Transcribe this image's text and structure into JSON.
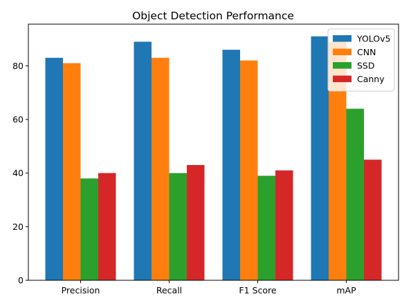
{
  "chart_data": {
    "type": "bar",
    "title": "Object Detection Performance",
    "xlabel": "",
    "ylabel": "",
    "categories": [
      "Precision",
      "Recall",
      "F1 Score",
      "mAP"
    ],
    "series": [
      {
        "name": "YOLOv5",
        "color": "#1f77b4",
        "values": [
          83,
          89,
          86,
          91
        ]
      },
      {
        "name": "CNN",
        "color": "#ff7f0e",
        "values": [
          81,
          83,
          82,
          89
        ]
      },
      {
        "name": "SSD",
        "color": "#2ca02c",
        "values": [
          38,
          40,
          39,
          64
        ]
      },
      {
        "name": "Canny",
        "color": "#d62728",
        "values": [
          40,
          43,
          41,
          45
        ]
      }
    ],
    "ylim": [
      0,
      95.55
    ],
    "yticks": [
      0,
      20,
      40,
      60,
      80
    ],
    "grid": false,
    "legend_position": "top-right"
  }
}
